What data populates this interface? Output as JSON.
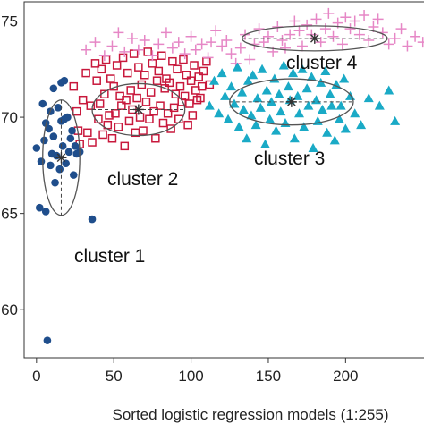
{
  "chart_data": {
    "type": "scatter",
    "xlabel": "Sorted logistic regression models (1:255)",
    "ylabel": "",
    "xlim": [
      -8,
      260
    ],
    "ylim": [
      57.5,
      76
    ],
    "x_ticks": [
      0,
      50,
      100,
      150,
      200
    ],
    "y_ticks": [
      60,
      65,
      70,
      75
    ],
    "y_tick_labels": [
      "60",
      "65",
      "70",
      "75"
    ],
    "grid": false,
    "legend": "none",
    "clusters": [
      {
        "label": "cluster 1",
        "marker": "filled-circle",
        "color": "#1f4e8c",
        "centroid": [
          16,
          67.9
        ],
        "ellipse": {
          "cx": 16,
          "cy": 67.9,
          "rx": 12,
          "ry": 3.0
        },
        "points": [
          [
            0,
            68.4
          ],
          [
            2,
            65.3
          ],
          [
            3,
            67.7
          ],
          [
            4,
            70.7
          ],
          [
            5,
            68.8
          ],
          [
            6,
            69.7
          ],
          [
            6,
            65.1
          ],
          [
            7,
            58.4
          ],
          [
            8,
            69.4
          ],
          [
            9,
            70.3
          ],
          [
            9,
            67.5
          ],
          [
            10,
            68.1
          ],
          [
            11,
            71.5
          ],
          [
            11,
            69.0
          ],
          [
            12,
            66.6
          ],
          [
            13,
            68.0
          ],
          [
            14,
            70.5
          ],
          [
            15,
            67.3
          ],
          [
            16,
            69.8
          ],
          [
            16,
            71.8
          ],
          [
            17,
            68.5
          ],
          [
            18,
            69.9
          ],
          [
            18,
            71.9
          ],
          [
            19,
            67.6
          ],
          [
            20,
            70.0
          ],
          [
            21,
            68.2
          ],
          [
            22,
            68.9
          ],
          [
            23,
            69.3
          ],
          [
            24,
            67.0
          ],
          [
            25,
            68.5
          ],
          [
            26,
            68.1
          ],
          [
            28,
            68.2
          ],
          [
            36,
            64.7
          ]
        ]
      },
      {
        "label": "cluster 2",
        "marker": "open-square",
        "color": "#c8183c",
        "centroid": [
          66,
          70.4
        ],
        "ellipse": {
          "cx": 66,
          "cy": 70.4,
          "rx": 30,
          "ry": 1.35
        },
        "points": [
          [
            24,
            71.6
          ],
          [
            26,
            70.3
          ],
          [
            27,
            69.3
          ],
          [
            28,
            68.6
          ],
          [
            30,
            70.9
          ],
          [
            32,
            72.3
          ],
          [
            33,
            69.2
          ],
          [
            35,
            70.6
          ],
          [
            36,
            68.7
          ],
          [
            38,
            72.8
          ],
          [
            39,
            71.9
          ],
          [
            40,
            69.9
          ],
          [
            41,
            70.7
          ],
          [
            42,
            72.5
          ],
          [
            43,
            69.1
          ],
          [
            44,
            71.2
          ],
          [
            45,
            73.0
          ],
          [
            46,
            69.6
          ],
          [
            47,
            70.1
          ],
          [
            48,
            72.0
          ],
          [
            49,
            68.9
          ],
          [
            50,
            71.6
          ],
          [
            51,
            70.2
          ],
          [
            52,
            72.7
          ],
          [
            53,
            69.5
          ],
          [
            54,
            71.1
          ],
          [
            55,
            70.6
          ],
          [
            56,
            73.1
          ],
          [
            57,
            68.5
          ],
          [
            58,
            70.9
          ],
          [
            59,
            72.3
          ],
          [
            60,
            69.8
          ],
          [
            61,
            71.4
          ],
          [
            62,
            70.4
          ],
          [
            63,
            73.3
          ],
          [
            64,
            69.2
          ],
          [
            65,
            71.0
          ],
          [
            66,
            72.6
          ],
          [
            67,
            70.0
          ],
          [
            68,
            71.7
          ],
          [
            69,
            69.3
          ],
          [
            70,
            72.2
          ],
          [
            71,
            70.8
          ],
          [
            72,
            73.4
          ],
          [
            73,
            69.9
          ],
          [
            74,
            71.3
          ],
          [
            75,
            72.8
          ],
          [
            76,
            70.3
          ],
          [
            77,
            68.9
          ],
          [
            78,
            71.9
          ],
          [
            79,
            72.4
          ],
          [
            80,
            70.6
          ],
          [
            81,
            73.2
          ],
          [
            82,
            69.7
          ],
          [
            83,
            71.5
          ],
          [
            84,
            72.0
          ],
          [
            85,
            70.2
          ],
          [
            86,
            71.8
          ],
          [
            87,
            69.4
          ],
          [
            88,
            72.9
          ],
          [
            89,
            70.5
          ],
          [
            90,
            71.2
          ],
          [
            91,
            72.5
          ],
          [
            92,
            69.9
          ],
          [
            93,
            71.6
          ],
          [
            94,
            70.8
          ],
          [
            95,
            73.0
          ],
          [
            96,
            71.1
          ],
          [
            97,
            72.2
          ],
          [
            98,
            69.6
          ],
          [
            99,
            70.7
          ],
          [
            100,
            71.9
          ],
          [
            101,
            70.1
          ],
          [
            102,
            72.7
          ],
          [
            103,
            71.4
          ],
          [
            104,
            70.9
          ],
          [
            105,
            72.1
          ],
          [
            106,
            71.0
          ],
          [
            107,
            71.6
          ],
          [
            108,
            72.4
          ],
          [
            110,
            72.9
          ],
          [
            112,
            71.7
          ]
        ]
      },
      {
        "label": "cluster 3",
        "marker": "filled-triangle",
        "color": "#1aaac6",
        "centroid": [
          165,
          70.8
        ],
        "ellipse": {
          "cx": 165,
          "cy": 70.8,
          "rx": 40,
          "ry": 1.2
        },
        "points": [
          [
            112,
            70.6
          ],
          [
            115,
            71.9
          ],
          [
            118,
            70.2
          ],
          [
            120,
            72.3
          ],
          [
            122,
            71.1
          ],
          [
            124,
            69.9
          ],
          [
            126,
            71.6
          ],
          [
            128,
            70.7
          ],
          [
            130,
            72.6
          ],
          [
            131,
            69.5
          ],
          [
            133,
            71.3
          ],
          [
            134,
            70.4
          ],
          [
            136,
            68.9
          ],
          [
            137,
            71.9
          ],
          [
            139,
            70.1
          ],
          [
            140,
            72.2
          ],
          [
            142,
            69.6
          ],
          [
            143,
            71.0
          ],
          [
            145,
            70.5
          ],
          [
            146,
            72.5
          ],
          [
            148,
            68.6
          ],
          [
            149,
            71.4
          ],
          [
            151,
            69.9
          ],
          [
            152,
            70.8
          ],
          [
            154,
            72.0
          ],
          [
            155,
            69.3
          ],
          [
            157,
            71.2
          ],
          [
            158,
            70.3
          ],
          [
            160,
            72.7
          ],
          [
            161,
            69.7
          ],
          [
            163,
            71.6
          ],
          [
            164,
            70.9
          ],
          [
            166,
            72.3
          ],
          [
            167,
            68.9
          ],
          [
            169,
            71.1
          ],
          [
            170,
            70.2
          ],
          [
            172,
            72.5
          ],
          [
            173,
            69.5
          ],
          [
            175,
            71.5
          ],
          [
            176,
            70.6
          ],
          [
            178,
            72.1
          ],
          [
            179,
            68.4
          ],
          [
            181,
            70.9
          ],
          [
            182,
            69.8
          ],
          [
            184,
            71.8
          ],
          [
            185,
            70.4
          ],
          [
            187,
            72.4
          ],
          [
            188,
            69.2
          ],
          [
            190,
            71.2
          ],
          [
            191,
            70.6
          ],
          [
            193,
            68.8
          ],
          [
            194,
            71.7
          ],
          [
            196,
            69.9
          ],
          [
            197,
            70.6
          ],
          [
            199,
            72.0
          ],
          [
            200,
            69.4
          ],
          [
            203,
            71.1
          ],
          [
            206,
            70.2
          ],
          [
            210,
            69.6
          ],
          [
            215,
            71.0
          ],
          [
            222,
            70.6
          ],
          [
            228,
            71.4
          ],
          [
            232,
            69.8
          ]
        ]
      },
      {
        "label": "cluster 4",
        "marker": "plus",
        "color": "#e687c6",
        "centroid": [
          180,
          74.1
        ],
        "ellipse": {
          "cx": 180,
          "cy": 74.1,
          "rx": 47,
          "ry": 0.65
        },
        "points": [
          [
            32,
            73.5
          ],
          [
            38,
            73.9
          ],
          [
            44,
            73.2
          ],
          [
            49,
            73.7
          ],
          [
            53,
            74.4
          ],
          [
            57,
            73.4
          ],
          [
            62,
            74.1
          ],
          [
            66,
            73.5
          ],
          [
            70,
            74.0
          ],
          [
            75,
            73.2
          ],
          [
            79,
            73.8
          ],
          [
            84,
            74.4
          ],
          [
            88,
            73.6
          ],
          [
            92,
            73.9
          ],
          [
            96,
            73.3
          ],
          [
            100,
            74.2
          ],
          [
            103,
            73.5
          ],
          [
            107,
            73.8
          ],
          [
            111,
            73.1
          ],
          [
            113,
            73.9
          ],
          [
            116,
            74.5
          ],
          [
            120,
            73.7
          ],
          [
            123,
            74.0
          ],
          [
            126,
            73.3
          ],
          [
            129,
            72.8
          ],
          [
            132,
            73.6
          ],
          [
            135,
            74.3
          ],
          [
            138,
            73.0
          ],
          [
            141,
            73.8
          ],
          [
            144,
            74.6
          ],
          [
            147,
            73.9
          ],
          [
            150,
            74.2
          ],
          [
            153,
            73.4
          ],
          [
            156,
            74.7
          ],
          [
            159,
            74.0
          ],
          [
            161,
            73.6
          ],
          [
            164,
            74.3
          ],
          [
            167,
            75.0
          ],
          [
            170,
            74.5
          ],
          [
            172,
            73.7
          ],
          [
            175,
            74.8
          ],
          [
            178,
            74.3
          ],
          [
            181,
            75.1
          ],
          [
            184,
            73.9
          ],
          [
            187,
            74.6
          ],
          [
            189,
            75.4
          ],
          [
            192,
            74.2
          ],
          [
            195,
            74.9
          ],
          [
            198,
            73.8
          ],
          [
            200,
            75.2
          ],
          [
            203,
            74.6
          ],
          [
            206,
            75.0
          ],
          [
            209,
            74.3
          ],
          [
            212,
            75.3
          ],
          [
            215,
            74.0
          ],
          [
            218,
            74.7
          ],
          [
            221,
            75.1
          ],
          [
            224,
            74.4
          ],
          [
            228,
            73.8
          ],
          [
            232,
            74.1
          ],
          [
            236,
            74.6
          ],
          [
            240,
            73.7
          ],
          [
            245,
            74.2
          ],
          [
            250,
            73.9
          ]
        ]
      }
    ]
  }
}
